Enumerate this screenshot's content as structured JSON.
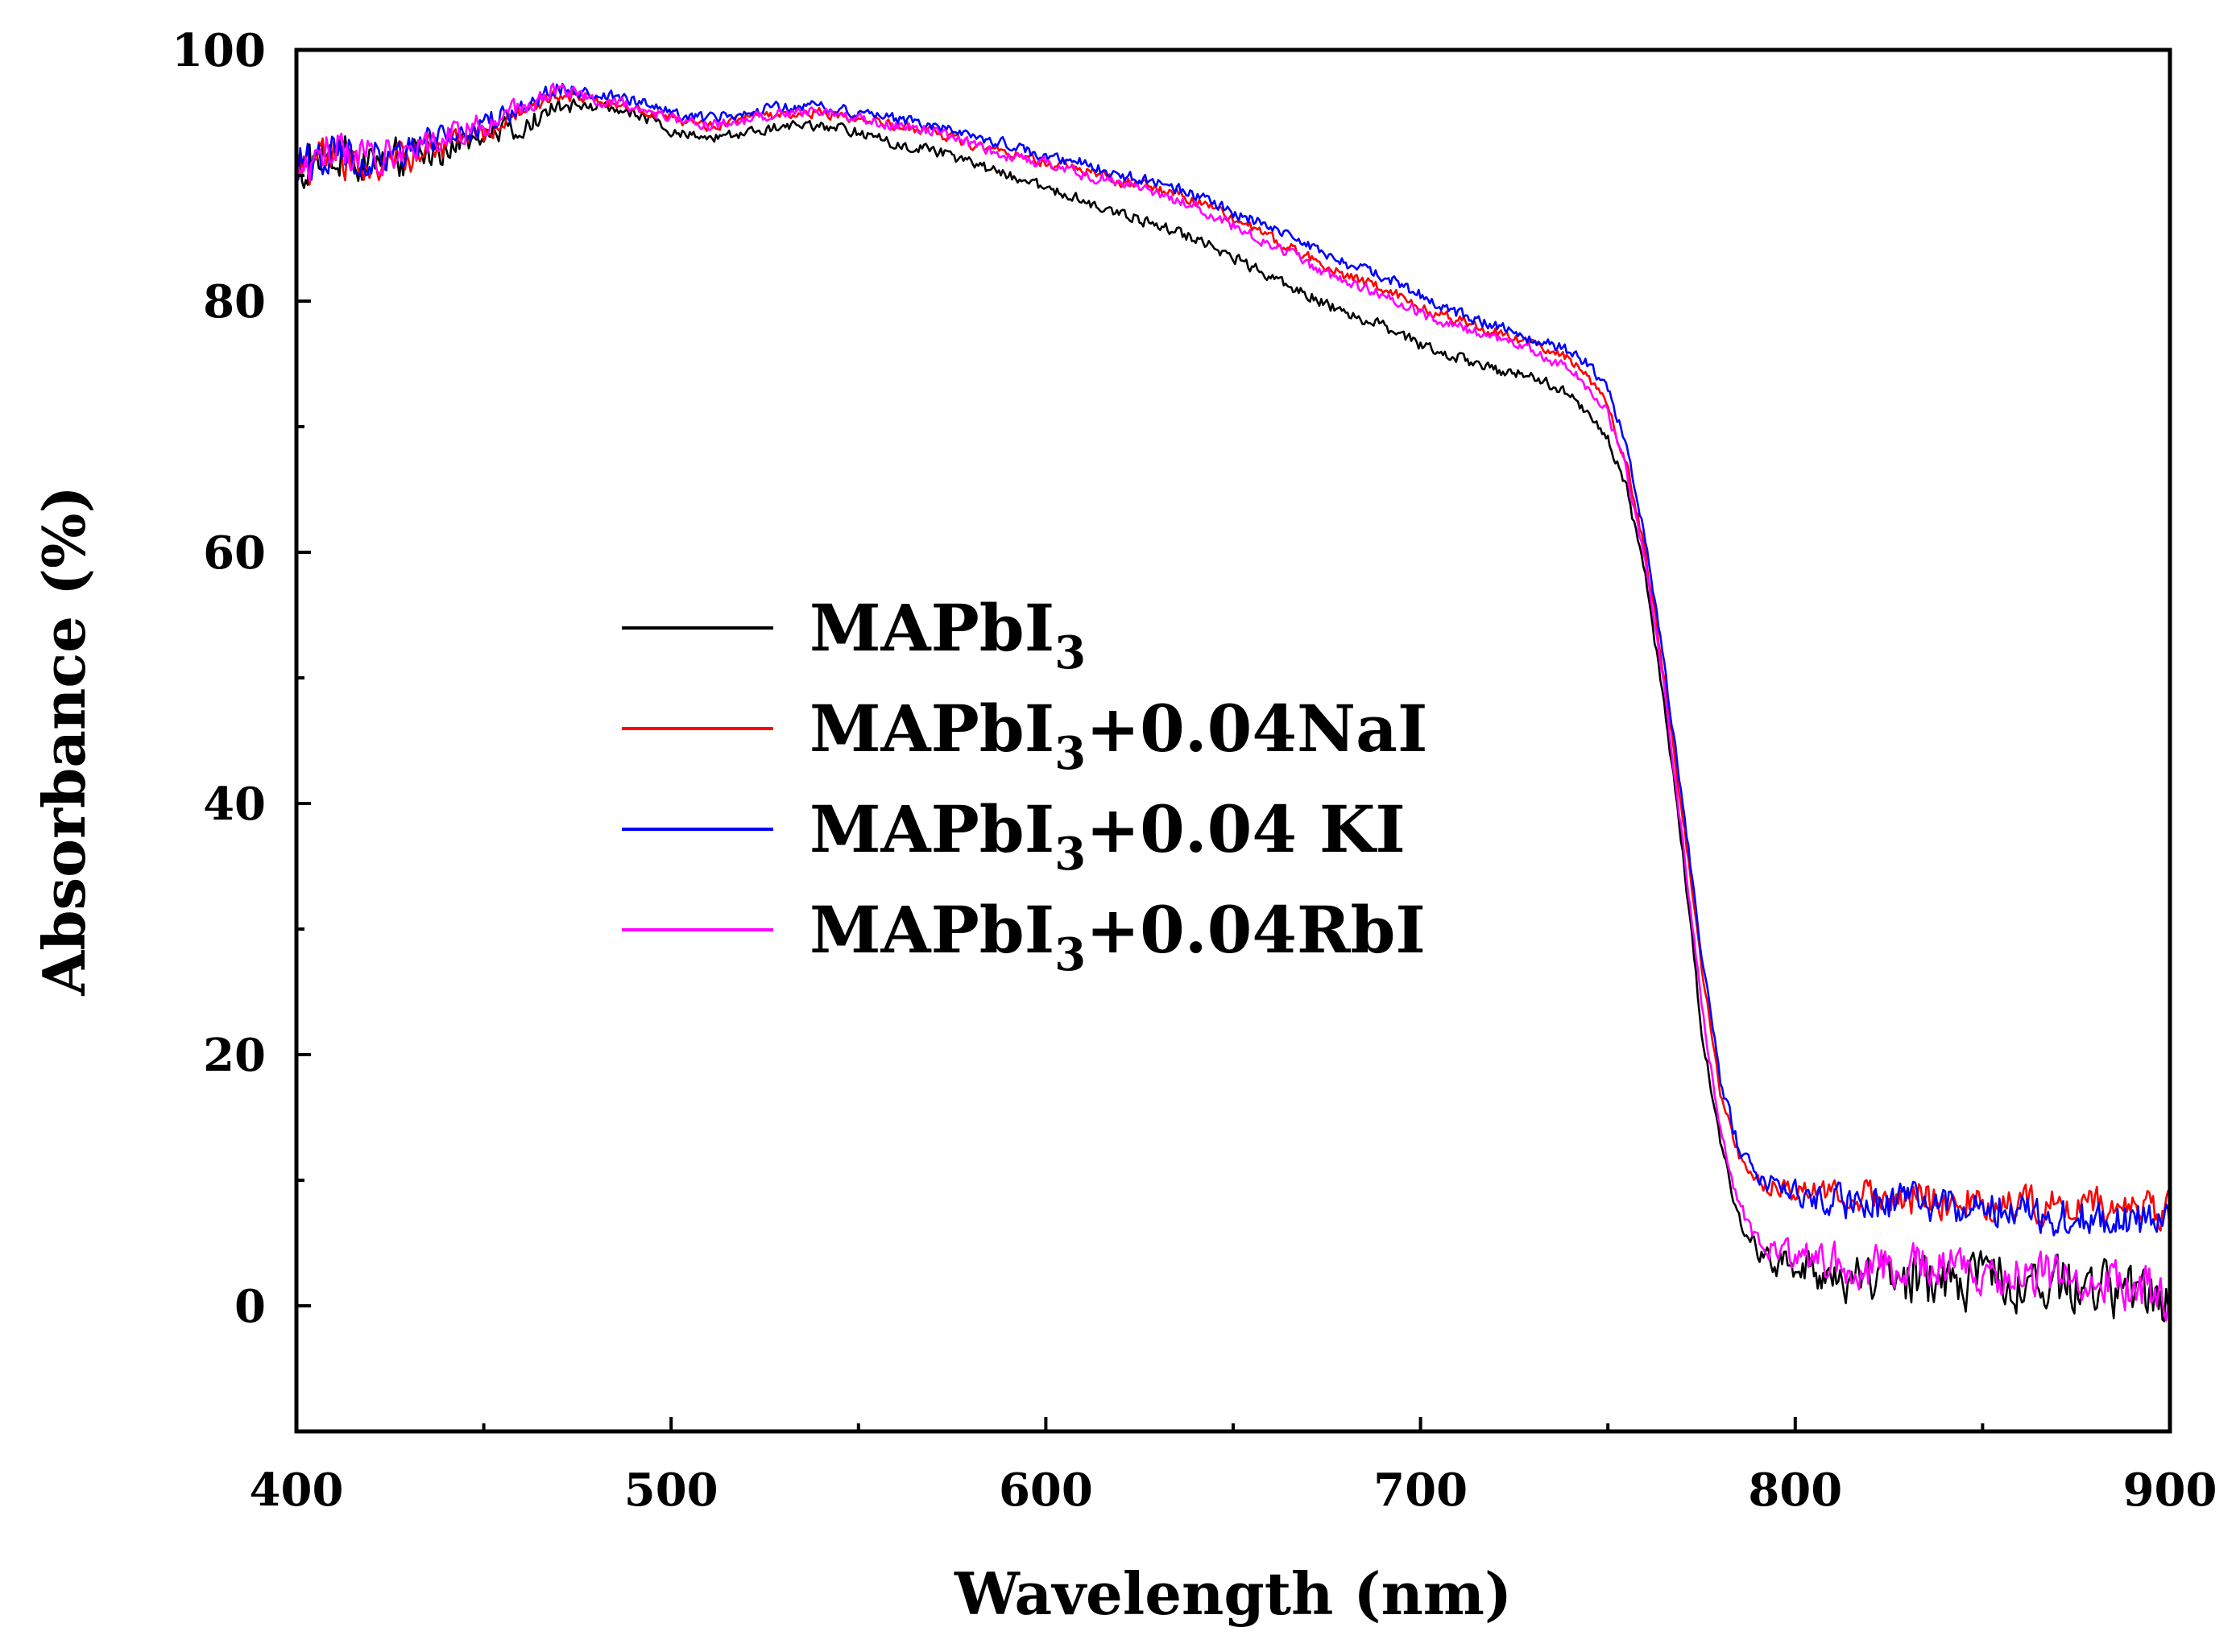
{
  "chart_data": {
    "type": "line",
    "title": "",
    "xlabel": "Wavelength (nm)",
    "ylabel": "Absorbance (%)",
    "xlim": [
      400,
      900
    ],
    "ylim": [
      -10,
      100
    ],
    "xticks": [
      400,
      500,
      600,
      700,
      800,
      900
    ],
    "yticks": [
      0,
      20,
      40,
      60,
      80,
      100
    ],
    "x_minor_step": 50,
    "y_minor_step": 10,
    "grid": false,
    "legend_position": "center-left",
    "series": [
      {
        "name": "MAPbI3",
        "label_main": "MAPbI",
        "label_sub": "3",
        "label_suffix": "",
        "color": "#000000",
        "noise_low": 3.0,
        "noise_high": 3.0,
        "points": [
          [
            400,
            91
          ],
          [
            410,
            92
          ],
          [
            420,
            91
          ],
          [
            430,
            91.5
          ],
          [
            440,
            92
          ],
          [
            450,
            93
          ],
          [
            460,
            94
          ],
          [
            470,
            95.5
          ],
          [
            480,
            95.5
          ],
          [
            490,
            95
          ],
          [
            500,
            93.5
          ],
          [
            510,
            93
          ],
          [
            520,
            93.5
          ],
          [
            530,
            94
          ],
          [
            540,
            94
          ],
          [
            550,
            93.5
          ],
          [
            560,
            92.5
          ],
          [
            570,
            92
          ],
          [
            580,
            91
          ],
          [
            590,
            90
          ],
          [
            600,
            89
          ],
          [
            610,
            88
          ],
          [
            620,
            87
          ],
          [
            630,
            86
          ],
          [
            640,
            85
          ],
          [
            650,
            83.5
          ],
          [
            660,
            82
          ],
          [
            670,
            80.5
          ],
          [
            680,
            79
          ],
          [
            690,
            78
          ],
          [
            700,
            76.5
          ],
          [
            710,
            75.5
          ],
          [
            720,
            74.5
          ],
          [
            730,
            74
          ],
          [
            740,
            72.5
          ],
          [
            745,
            71
          ],
          [
            750,
            69
          ],
          [
            755,
            65
          ],
          [
            760,
            58
          ],
          [
            765,
            48
          ],
          [
            770,
            36
          ],
          [
            775,
            22
          ],
          [
            780,
            13
          ],
          [
            785,
            7
          ],
          [
            790,
            4
          ],
          [
            800,
            3
          ],
          [
            810,
            2.5
          ],
          [
            820,
            2
          ],
          [
            840,
            2
          ],
          [
            860,
            2
          ],
          [
            880,
            1.5
          ],
          [
            900,
            0.5
          ]
        ]
      },
      {
        "name": "MAPbI3+0.04NaI",
        "label_main": "MAPbI",
        "label_sub": "3",
        "label_suffix": "+0.04NaI",
        "color": "#ff0000",
        "noise_low": 2.5,
        "noise_high": 2.0,
        "points": [
          [
            400,
            90.5
          ],
          [
            410,
            91.5
          ],
          [
            420,
            91
          ],
          [
            430,
            91.5
          ],
          [
            440,
            92.5
          ],
          [
            450,
            93.5
          ],
          [
            460,
            95
          ],
          [
            470,
            96.5
          ],
          [
            480,
            96
          ],
          [
            490,
            95.5
          ],
          [
            500,
            94.5
          ],
          [
            510,
            94
          ],
          [
            520,
            94.5
          ],
          [
            530,
            95
          ],
          [
            540,
            95
          ],
          [
            550,
            94.5
          ],
          [
            560,
            94
          ],
          [
            570,
            93.5
          ],
          [
            580,
            92.5
          ],
          [
            590,
            92
          ],
          [
            600,
            91
          ],
          [
            610,
            90.5
          ],
          [
            620,
            89.5
          ],
          [
            630,
            89
          ],
          [
            640,
            88
          ],
          [
            650,
            86.5
          ],
          [
            660,
            85
          ],
          [
            670,
            83.5
          ],
          [
            680,
            82
          ],
          [
            690,
            81
          ],
          [
            700,
            79.5
          ],
          [
            710,
            78.5
          ],
          [
            720,
            77.5
          ],
          [
            730,
            76.5
          ],
          [
            740,
            75.5
          ],
          [
            745,
            74
          ],
          [
            750,
            71.5
          ],
          [
            755,
            67
          ],
          [
            760,
            60
          ],
          [
            765,
            50
          ],
          [
            770,
            39
          ],
          [
            775,
            27
          ],
          [
            780,
            17
          ],
          [
            785,
            12
          ],
          [
            790,
            10
          ],
          [
            800,
            9
          ],
          [
            810,
            9
          ],
          [
            820,
            9
          ],
          [
            840,
            8.5
          ],
          [
            860,
            8
          ],
          [
            880,
            8
          ],
          [
            900,
            7.5
          ]
        ]
      },
      {
        "name": "MAPbI3+0.04 KI",
        "label_main": "MAPbI",
        "label_sub": "3",
        "label_suffix": "+0.04 KI",
        "color": "#0000ff",
        "noise_low": 2.5,
        "noise_high": 2.2,
        "points": [
          [
            400,
            91
          ],
          [
            410,
            92
          ],
          [
            420,
            91.5
          ],
          [
            430,
            92
          ],
          [
            440,
            93
          ],
          [
            450,
            94
          ],
          [
            460,
            95.5
          ],
          [
            470,
            97
          ],
          [
            480,
            96.5
          ],
          [
            490,
            96
          ],
          [
            500,
            95
          ],
          [
            510,
            94.5
          ],
          [
            520,
            95
          ],
          [
            530,
            95.5
          ],
          [
            540,
            95.5
          ],
          [
            550,
            95
          ],
          [
            560,
            94.5
          ],
          [
            570,
            94
          ],
          [
            580,
            93
          ],
          [
            590,
            92.5
          ],
          [
            600,
            91.5
          ],
          [
            610,
            91
          ],
          [
            620,
            90
          ],
          [
            630,
            89.5
          ],
          [
            640,
            88.5
          ],
          [
            650,
            87
          ],
          [
            660,
            86
          ],
          [
            670,
            84.5
          ],
          [
            680,
            83
          ],
          [
            690,
            82
          ],
          [
            700,
            80.5
          ],
          [
            710,
            79
          ],
          [
            720,
            78
          ],
          [
            730,
            77
          ],
          [
            740,
            76
          ],
          [
            745,
            75
          ],
          [
            750,
            73
          ],
          [
            755,
            68.5
          ],
          [
            760,
            61
          ],
          [
            765,
            51
          ],
          [
            770,
            40
          ],
          [
            775,
            28
          ],
          [
            780,
            18
          ],
          [
            785,
            12.5
          ],
          [
            790,
            10
          ],
          [
            800,
            9
          ],
          [
            810,
            8.5
          ],
          [
            820,
            8
          ],
          [
            840,
            8
          ],
          [
            860,
            7.5
          ],
          [
            880,
            7
          ],
          [
            900,
            6.5
          ]
        ]
      },
      {
        "name": "MAPbI3+0.04RbI",
        "label_main": "MAPbI",
        "label_sub": "3",
        "label_suffix": "+0.04RbI",
        "color": "#ff00ff",
        "noise_low": 2.6,
        "noise_high": 2.5,
        "points": [
          [
            400,
            91
          ],
          [
            410,
            92
          ],
          [
            420,
            91.5
          ],
          [
            430,
            92
          ],
          [
            440,
            93
          ],
          [
            450,
            94
          ],
          [
            460,
            95.5
          ],
          [
            470,
            97
          ],
          [
            480,
            96
          ],
          [
            490,
            95.5
          ],
          [
            500,
            94.5
          ],
          [
            510,
            94
          ],
          [
            520,
            94.5
          ],
          [
            530,
            95
          ],
          [
            540,
            95
          ],
          [
            550,
            94.5
          ],
          [
            560,
            94
          ],
          [
            570,
            93.5
          ],
          [
            580,
            92.5
          ],
          [
            590,
            91.5
          ],
          [
            600,
            91
          ],
          [
            610,
            90
          ],
          [
            620,
            89.5
          ],
          [
            630,
            88.5
          ],
          [
            640,
            87.5
          ],
          [
            650,
            86
          ],
          [
            660,
            84.5
          ],
          [
            670,
            83
          ],
          [
            680,
            81.5
          ],
          [
            690,
            80.5
          ],
          [
            700,
            79
          ],
          [
            710,
            78
          ],
          [
            720,
            77
          ],
          [
            730,
            76
          ],
          [
            740,
            74.5
          ],
          [
            745,
            73
          ],
          [
            750,
            71
          ],
          [
            755,
            66.5
          ],
          [
            760,
            59
          ],
          [
            765,
            49
          ],
          [
            770,
            37
          ],
          [
            775,
            24
          ],
          [
            780,
            14
          ],
          [
            785,
            8
          ],
          [
            790,
            5
          ],
          [
            800,
            4
          ],
          [
            810,
            3.5
          ],
          [
            820,
            3
          ],
          [
            840,
            3
          ],
          [
            860,
            2.5
          ],
          [
            880,
            2
          ],
          [
            900,
            1
          ]
        ]
      }
    ]
  }
}
